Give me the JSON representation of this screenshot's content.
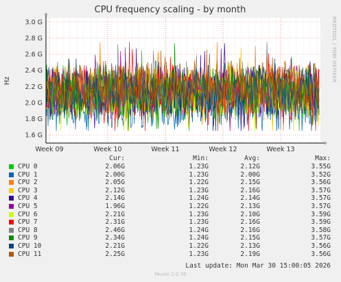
{
  "chart_data": {
    "type": "line",
    "title": "CPU frequency scaling - by month",
    "ylabel": "Hz",
    "side_label": "RRDTOOL / TOBI OETIKER",
    "y_ticks": [
      "1.6 G",
      "1.8 G",
      "2.0 G",
      "2.2 G",
      "2.4 G",
      "2.6 G",
      "2.8 G",
      "3.0 G"
    ],
    "ylim": [
      1.5,
      3.05
    ],
    "x_ticks": [
      "Week 09",
      "Week 10",
      "Week 11",
      "Week 12",
      "Week 13"
    ],
    "grid": true,
    "legend_headers": {
      "cur": "Cur:",
      "min": "Min:",
      "avg": "Avg:",
      "max": "Max:"
    },
    "series": [
      {
        "name": "CPU 0",
        "color": "#00cc00",
        "cur": "2.06G",
        "min": "1.23G",
        "avg": "2.12G",
        "max": "3.55G"
      },
      {
        "name": "CPU 1",
        "color": "#0066b3",
        "cur": "2.00G",
        "min": "1.23G",
        "avg": "2.00G",
        "max": "3.52G"
      },
      {
        "name": "CPU 2",
        "color": "#ff8000",
        "cur": "2.05G",
        "min": "1.22G",
        "avg": "2.15G",
        "max": "3.56G"
      },
      {
        "name": "CPU 3",
        "color": "#ffcc00",
        "cur": "2.12G",
        "min": "1.23G",
        "avg": "2.16G",
        "max": "3.57G"
      },
      {
        "name": "CPU 4",
        "color": "#330099",
        "cur": "2.14G",
        "min": "1.24G",
        "avg": "2.14G",
        "max": "3.57G"
      },
      {
        "name": "CPU 5",
        "color": "#990099",
        "cur": "1.96G",
        "min": "1.22G",
        "avg": "2.13G",
        "max": "3.57G"
      },
      {
        "name": "CPU 6",
        "color": "#ccff00",
        "cur": "2.21G",
        "min": "1.23G",
        "avg": "2.10G",
        "max": "3.59G"
      },
      {
        "name": "CPU 7",
        "color": "#ff0000",
        "cur": "2.31G",
        "min": "1.23G",
        "avg": "2.16G",
        "max": "3.59G"
      },
      {
        "name": "CPU 8",
        "color": "#808080",
        "cur": "2.46G",
        "min": "1.24G",
        "avg": "2.16G",
        "max": "3.58G"
      },
      {
        "name": "CPU 9",
        "color": "#008f00",
        "cur": "2.34G",
        "min": "1.24G",
        "avg": "2.15G",
        "max": "3.57G"
      },
      {
        "name": "CPU 10",
        "color": "#00487d",
        "cur": "2.21G",
        "min": "1.22G",
        "avg": "2.13G",
        "max": "3.56G"
      },
      {
        "name": "CPU 11",
        "color": "#b35a00",
        "cur": "2.25G",
        "min": "1.23G",
        "avg": "2.19G",
        "max": "3.56G"
      }
    ]
  },
  "footer": {
    "last_update": "Last update: Mon Mar 30 15:00:05 2026",
    "version": "Munin 2.0.76"
  }
}
